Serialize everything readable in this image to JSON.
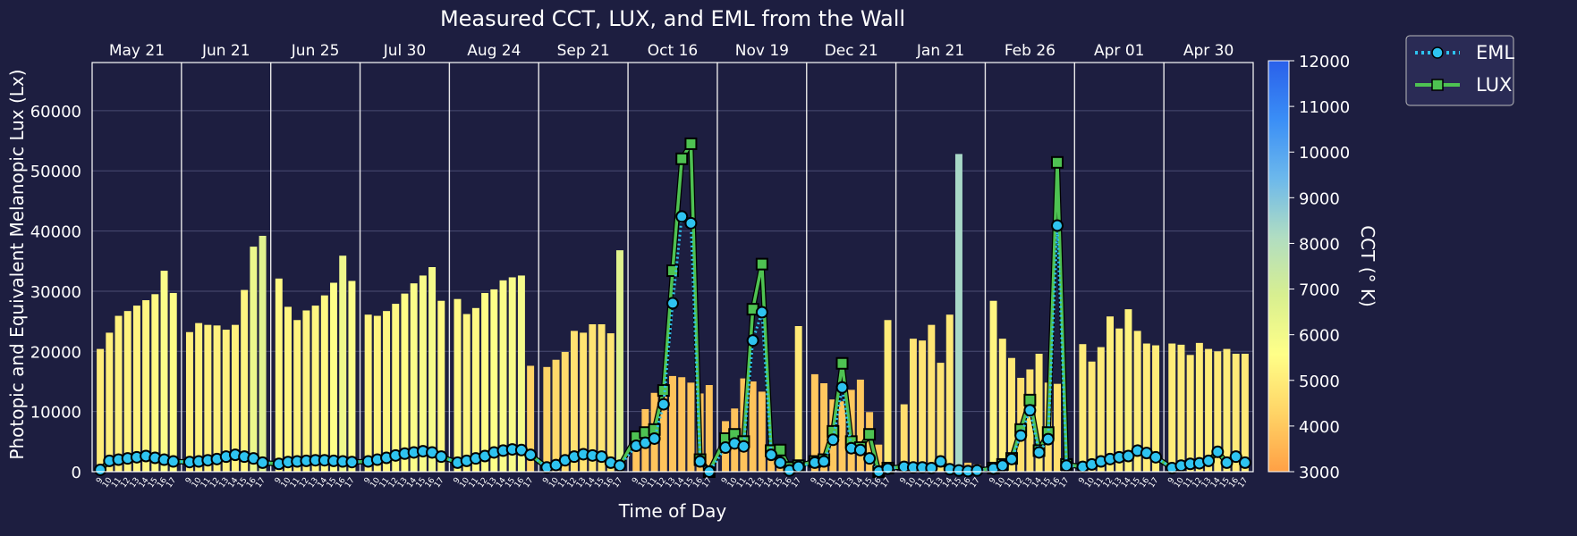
{
  "chart_data": {
    "type": "bar",
    "title": "Measured CCT, LUX, and EML from the Wall",
    "xlabel": "Time of Day",
    "ylabel": "Photopic and Equivalent Melanopic Lux (Lx)",
    "ylim": [
      0,
      68000
    ],
    "yticks": [
      0,
      10000,
      20000,
      30000,
      40000,
      50000,
      60000
    ],
    "grid": true,
    "legend_position": "top-right, outside plot",
    "colorbar": {
      "label": "CCT (° K)",
      "range": [
        3000,
        12000
      ],
      "ticks": [
        3000,
        4000,
        5000,
        6000,
        7000,
        8000,
        9000,
        10000,
        11000,
        12000
      ],
      "colors": [
        "#ffa045",
        "#ffd466",
        "#ffff88",
        "#d8ef90",
        "#b0ddc2",
        "#6cb8ec",
        "#3a8ef6",
        "#2a60ea"
      ]
    },
    "hour_labels": [
      "9",
      "10",
      "11",
      "12",
      "13",
      "14",
      "15",
      "16",
      "17"
    ],
    "days": [
      {
        "date": "May 21",
        "lux": [
          20400,
          23100,
          25900,
          26700,
          27600,
          28500,
          29500,
          33400,
          29700
        ],
        "eml": [
          300,
          1800,
          2000,
          2200,
          2400,
          2600,
          2300,
          2000,
          1700
        ],
        "cct": [
          5000,
          5100,
          5150,
          5200,
          5250,
          5300,
          5400,
          5700,
          5500
        ]
      },
      {
        "date": "Jun 21",
        "lux": [
          23200,
          24700,
          24400,
          24300,
          23600,
          24400,
          30200,
          37400,
          39200
        ],
        "eml": [
          1600,
          1700,
          1900,
          2100,
          2500,
          2800,
          2500,
          2200,
          1500
        ],
        "cct": [
          5100,
          5150,
          5150,
          5150,
          5150,
          5150,
          5300,
          6200,
          6600
        ]
      },
      {
        "date": "Jun 25",
        "lux": [
          32100,
          27400,
          25200,
          26800,
          27600,
          29300,
          31400,
          35900,
          31700
        ],
        "eml": [
          1300,
          1600,
          1700,
          1800,
          1900,
          1900,
          1800,
          1700,
          1600
        ],
        "cct": [
          5400,
          5300,
          5200,
          5250,
          5300,
          5400,
          5600,
          6100,
          5700
        ]
      },
      {
        "date": "Jul 30",
        "lux": [
          26100,
          25900,
          26700,
          27900,
          29600,
          31300,
          32600,
          34000,
          28400
        ],
        "eml": [
          1700,
          2000,
          2300,
          2700,
          3000,
          3200,
          3400,
          3200,
          2500
        ],
        "cct": [
          5200,
          5200,
          5300,
          5400,
          5500,
          5700,
          5800,
          5900,
          5400
        ]
      },
      {
        "date": "Aug 24",
        "lux": [
          28700,
          26200,
          27200,
          29700,
          30300,
          31800,
          32300,
          32600,
          17600
        ],
        "eml": [
          1500,
          1800,
          2200,
          2600,
          3200,
          3500,
          3700,
          3600,
          2800
        ],
        "cct": [
          5400,
          5300,
          5400,
          5500,
          5600,
          5700,
          5800,
          5900,
          4300
        ]
      },
      {
        "date": "Sep 21",
        "lux": [
          17400,
          18600,
          19900,
          23400,
          23100,
          24500,
          24500,
          23000,
          36800
        ],
        "eml": [
          700,
          1100,
          1900,
          2500,
          2900,
          2700,
          2500,
          1500,
          1000
        ],
        "cct": [
          4300,
          4400,
          4500,
          4700,
          4750,
          4800,
          4800,
          4800,
          6600
        ]
      },
      {
        "date": "Oct 16",
        "lux": [
          5800,
          10400,
          13100,
          14500,
          15900,
          15700,
          14800,
          13000,
          14400
        ],
        "eml": [
          4300,
          4800,
          5500,
          11200,
          28000,
          42400,
          41300,
          1700,
          0
        ],
        "cct": [
          3900,
          3900,
          3900,
          3900,
          3900,
          3900,
          3900,
          3900,
          3900
        ]
      },
      {
        "date": "Nov 19",
        "lux": [
          8400,
          10500,
          15500,
          15000,
          13300,
          3600,
          1800,
          700,
          24200
        ],
        "eml": [
          4000,
          4700,
          4200,
          21800,
          26500,
          2800,
          1500,
          200,
          800
        ],
        "cct": [
          3900,
          3900,
          3900,
          3900,
          3900,
          3900,
          3900,
          3900,
          4900
        ]
      },
      {
        "date": "Dec 21",
        "lux": [
          16200,
          14700,
          12000,
          11700,
          13600,
          15300,
          9900,
          4500,
          25200
        ],
        "eml": [
          1500,
          1700,
          5300,
          14000,
          3900,
          3600,
          2200,
          0,
          500
        ],
        "cct": [
          4000,
          4000,
          4000,
          4000,
          4000,
          4000,
          4000,
          4000,
          5000
        ]
      },
      {
        "date": "Jan 21",
        "lux": [
          11200,
          22100,
          21800,
          24400,
          18100,
          26100,
          52800,
          1500,
          1200
        ],
        "eml": [
          800,
          700,
          700,
          600,
          1700,
          400,
          200,
          100,
          200
        ],
        "cct": [
          4600,
          4800,
          4800,
          4800,
          4800,
          4900,
          8300,
          4000,
          4000
        ]
      },
      {
        "date": "Feb 26",
        "lux": [
          28400,
          22100,
          18900,
          15600,
          17000,
          19600,
          14800,
          14600,
          2000
        ],
        "eml": [
          500,
          1000,
          2100,
          6000,
          10200,
          3200,
          5400,
          40900,
          1000
        ],
        "cct": [
          5300,
          5100,
          4900,
          4600,
          4700,
          4900,
          4600,
          4600,
          4000
        ]
      },
      {
        "date": "Apr 01",
        "lux": [
          21200,
          18300,
          20700,
          25800,
          23800,
          27000,
          23400,
          21300,
          21000
        ],
        "eml": [
          800,
          1200,
          1700,
          2100,
          2400,
          2600,
          3500,
          3100,
          2400
        ],
        "cct": [
          5000,
          4900,
          5000,
          5100,
          5100,
          5200,
          5100,
          5000,
          5000
        ]
      },
      {
        "date": "Apr 30",
        "lux": [
          21300,
          21100,
          19400,
          21400,
          20400,
          20000,
          20400,
          19600,
          19600
        ],
        "eml": [
          600,
          1000,
          1300,
          1400,
          1800,
          3300,
          1500,
          2500,
          1500
        ],
        "cct": [
          5000,
          5000,
          4950,
          5000,
          5000,
          4950,
          5000,
          4950,
          4950
        ]
      }
    ],
    "series": [
      {
        "name": "EML",
        "style": "dotted line, circle markers",
        "color": "#2ec3f0"
      },
      {
        "name": "LUX",
        "style": "solid line, square markers",
        "color": "#4ec252"
      }
    ],
    "lux_line_peaks": [
      {
        "date": "Oct 16",
        "values": [
          5800,
          6500,
          7000,
          13500,
          33400,
          52000,
          54500,
          2000,
          0
        ]
      },
      {
        "date": "Nov 19",
        "values": [
          5500,
          6200,
          5000,
          27000,
          34500,
          3500,
          3600,
          700,
          1000
        ]
      },
      {
        "date": "Dec 21",
        "values": [
          1700,
          2000,
          6700,
          18000,
          5000,
          4000,
          6200,
          0,
          600
        ]
      },
      {
        "date": "Feb 26",
        "values": [
          600,
          1200,
          2200,
          7000,
          11900,
          3500,
          6500,
          51400,
          1200
        ]
      }
    ]
  }
}
